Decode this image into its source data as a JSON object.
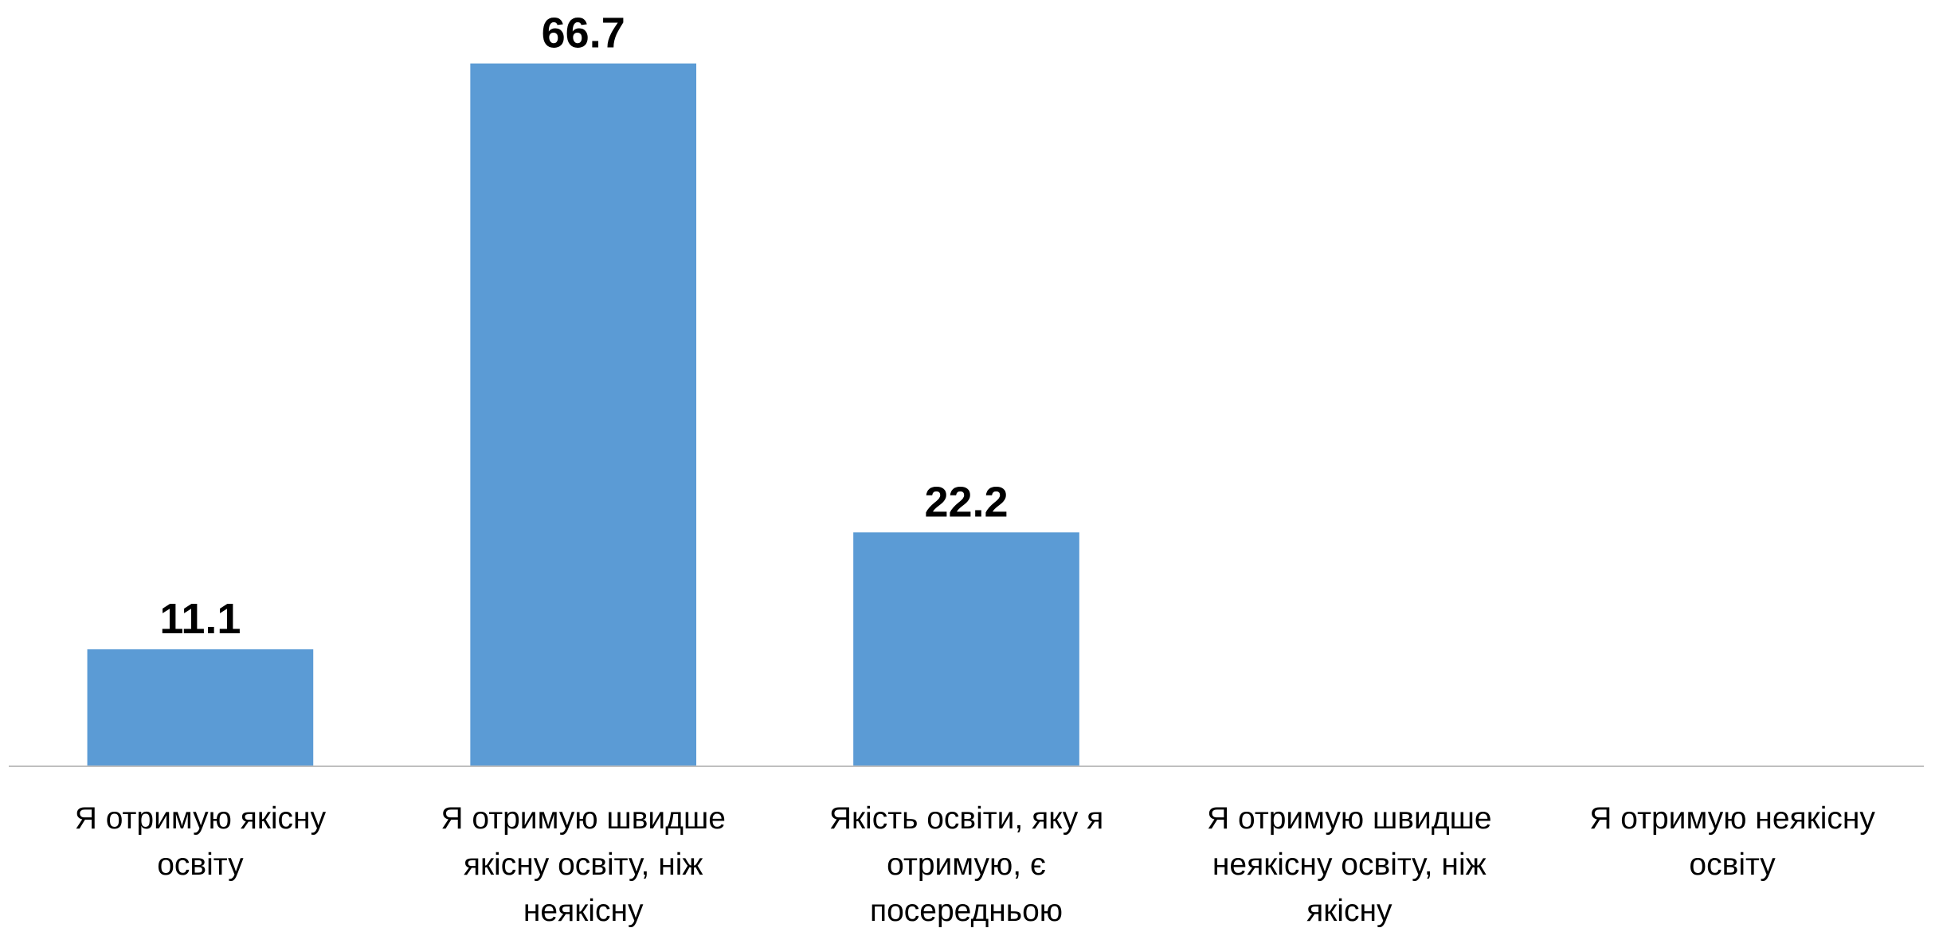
{
  "chart_data": {
    "type": "bar",
    "categories": [
      "Я отримую якісну освіту",
      "Я отримую швидше якісну освіту, ніж неякісну",
      "Якість освіти, яку я отримую, є посередньою",
      "Я отримую швидше неякісну освіту, ніж якісну",
      "Я отримую неякісну освіту"
    ],
    "values": [
      11.1,
      66.7,
      22.2,
      0,
      0
    ],
    "color": "#5b9bd5",
    "ylim": [
      0,
      70
    ]
  }
}
